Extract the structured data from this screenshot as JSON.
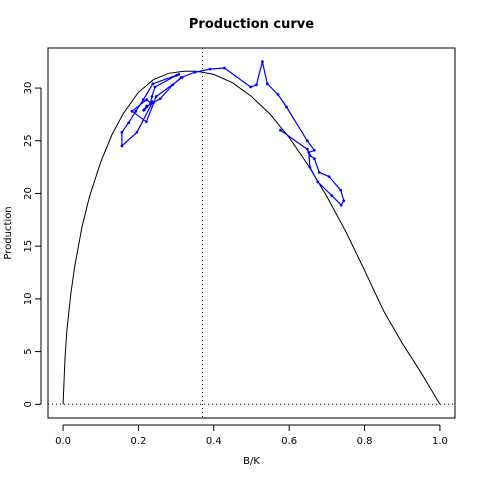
{
  "chart_data": {
    "type": "line",
    "title": "Production curve",
    "xlabel": "B/K",
    "ylabel": "Production",
    "xlim": [
      -0.04,
      1.04
    ],
    "ylim": [
      -1.3,
      33.8
    ],
    "x_ticks": [
      0.0,
      0.2,
      0.4,
      0.6,
      0.8,
      1.0
    ],
    "x_tick_labels": [
      "0.0",
      "0.2",
      "0.4",
      "0.6",
      "0.8",
      "1.0"
    ],
    "y_ticks": [
      0,
      5,
      10,
      15,
      20,
      25,
      30
    ],
    "y_tick_labels": [
      "0",
      "5",
      "10",
      "15",
      "20",
      "25",
      "30"
    ],
    "grid": false,
    "colors": {
      "observed": "#0000ff",
      "curve": "#000000",
      "reference": "#000000"
    },
    "model_curve": {
      "x": [
        0.0,
        0.005,
        0.01,
        0.02,
        0.03,
        0.05,
        0.07,
        0.1,
        0.13,
        0.16,
        0.2,
        0.24,
        0.28,
        0.32,
        0.35,
        0.37,
        0.4,
        0.45,
        0.5,
        0.55,
        0.6,
        0.65,
        0.7,
        0.75,
        0.8,
        0.85,
        0.9,
        0.95,
        1.0
      ],
      "y": [
        0.0,
        4.4,
        6.9,
        10.3,
        12.9,
        16.8,
        19.7,
        23.0,
        25.6,
        27.6,
        29.6,
        30.8,
        31.4,
        31.6,
        31.6,
        31.5,
        31.3,
        30.5,
        29.2,
        27.5,
        25.3,
        22.7,
        19.7,
        16.4,
        12.7,
        8.9,
        5.8,
        3.0,
        0.0
      ]
    },
    "reference_lines": {
      "vertical_x": 0.37,
      "horizontal_y": 0
    },
    "series": [
      {
        "x": [
          0.577,
          0.648,
          0.655,
          0.667,
          0.68,
          0.706,
          0.737,
          0.745,
          0.738,
          0.713,
          0.676,
          0.655,
          0.652,
          0.667,
          0.648,
          0.593,
          0.57,
          0.542,
          0.529,
          0.513,
          0.498,
          0.428,
          0.39,
          0.35,
          0.313,
          0.291,
          0.258,
          0.24,
          0.222,
          0.214,
          0.217,
          0.222,
          0.238,
          0.196,
          0.156,
          0.156,
          0.174,
          0.193,
          0.213,
          0.238,
          0.307,
          0.301,
          0.244,
          0.236,
          0.232,
          0.222,
          0.183,
          0.221,
          0.247,
          0.316
        ],
        "y": [
          26.0,
          24.2,
          23.6,
          23.3,
          22.0,
          21.6,
          20.3,
          19.3,
          18.9,
          19.8,
          21.1,
          22.5,
          23.9,
          24.1,
          25.0,
          28.2,
          29.4,
          30.4,
          32.5,
          30.3,
          30.1,
          31.9,
          31.8,
          31.5,
          31.0,
          30.3,
          29.0,
          28.6,
          28.3,
          27.9,
          28.0,
          28.2,
          28.7,
          25.8,
          24.5,
          25.8,
          26.7,
          27.8,
          28.9,
          30.4,
          31.3,
          31.2,
          30.1,
          29.2,
          28.6,
          28.9,
          27.8,
          26.8,
          29.2,
          31.0
        ]
      }
    ]
  }
}
